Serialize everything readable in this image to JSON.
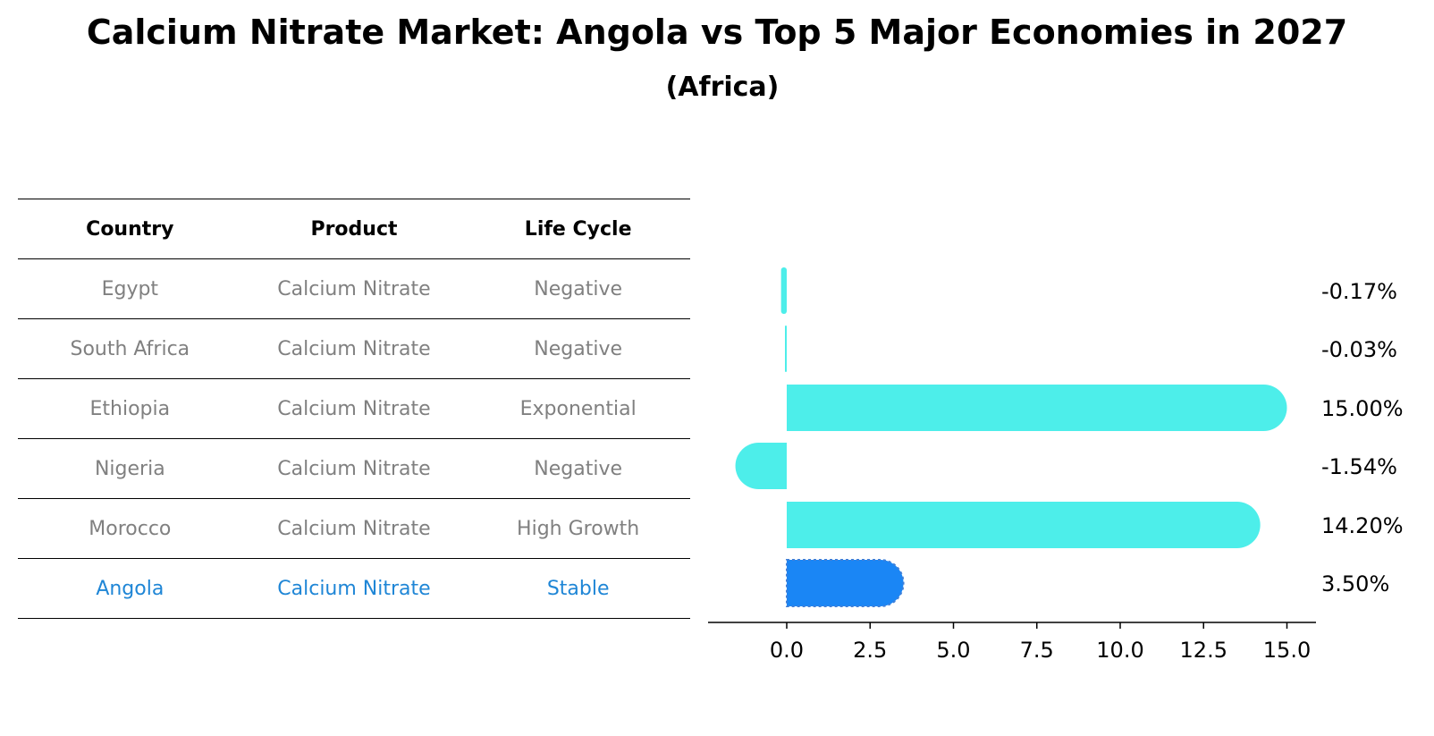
{
  "title": "Calcium Nitrate Market: Angola vs Top 5 Major Economies in 2027",
  "subtitle": "(Africa)",
  "table": {
    "headers": [
      "Country",
      "Product",
      "Life Cycle"
    ],
    "rows": [
      {
        "country": "Egypt",
        "product": "Calcium Nitrate",
        "life_cycle": "Negative"
      },
      {
        "country": "South Africa",
        "product": "Calcium Nitrate",
        "life_cycle": "Negative"
      },
      {
        "country": "Ethiopia",
        "product": "Calcium Nitrate",
        "life_cycle": "Exponential"
      },
      {
        "country": "Nigeria",
        "product": "Calcium Nitrate",
        "life_cycle": "Negative"
      },
      {
        "country": "Morocco",
        "product": "Calcium Nitrate",
        "life_cycle": "High Growth"
      },
      {
        "country": "Angola",
        "product": "Calcium Nitrate",
        "life_cycle": "Stable"
      }
    ]
  },
  "colors": {
    "bar": "#4deeea",
    "highlight": "#1a86f5",
    "highlight_text": "#1f86d6",
    "muted_text": "#808080"
  },
  "chart_data": {
    "type": "bar",
    "orientation": "horizontal",
    "categories": [
      "Egypt",
      "South Africa",
      "Ethiopia",
      "Nigeria",
      "Morocco",
      "Angola"
    ],
    "values": [
      -0.17,
      -0.03,
      15.0,
      -1.54,
      14.2,
      3.5
    ],
    "value_labels": [
      "-0.17%",
      "-0.03%",
      "15.00%",
      "-1.54%",
      "14.20%",
      "3.50%"
    ],
    "highlight_category": "Angola",
    "xlim": [
      -2.4,
      15.8
    ],
    "xticks": [
      0.0,
      2.5,
      5.0,
      7.5,
      10.0,
      12.5,
      15.0
    ],
    "xtick_labels": [
      "0.0",
      "2.5",
      "5.0",
      "7.5",
      "10.0",
      "12.5",
      "15.0"
    ],
    "xlabel": "",
    "ylabel": "",
    "grid": false
  }
}
